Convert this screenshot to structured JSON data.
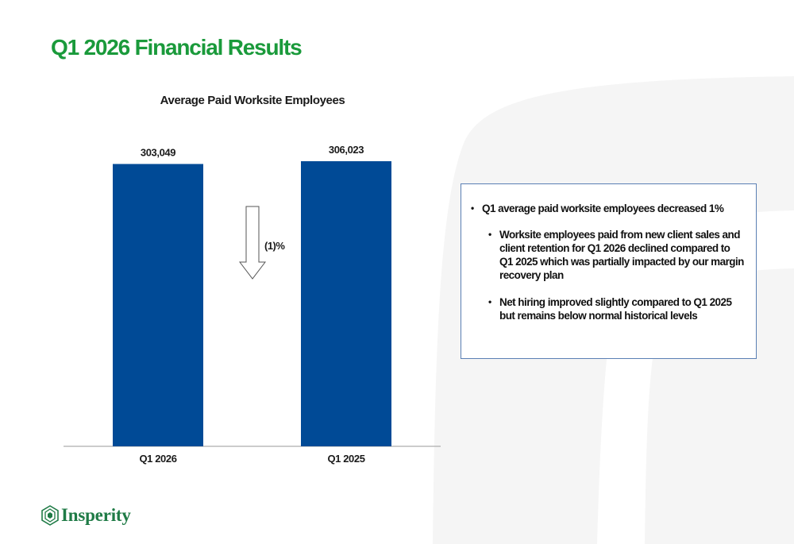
{
  "slide": {
    "title": "Q1 2026 Financial Results"
  },
  "chart_data": {
    "type": "bar",
    "title": "Average Paid Worksite Employees",
    "categories": [
      "Q1 2026",
      "Q1 2025"
    ],
    "values": [
      303049,
      306023
    ],
    "value_labels": [
      "303,049",
      "306,023"
    ],
    "bar_color": "#004a96",
    "change_annotation": "(1)%",
    "change_direction": "down",
    "ylim": [
      0,
      306023
    ],
    "grid": false,
    "legend": "none"
  },
  "bullets": {
    "main": "Q1 average paid worksite employees decreased 1%",
    "sub": [
      "Worksite employees paid from new client sales and client retention for Q1 2026  declined compared to Q1 2025 which was partially impacted by our margin recovery plan",
      "Net hiring improved slightly compared to  Q1 2025 but remains below normal historical levels"
    ]
  },
  "logo": {
    "text": "Insperity",
    "mark": "insperity-logo-icon"
  },
  "colors": {
    "title_green": "#1a9a3b",
    "bar_blue": "#004a96",
    "logo_green": "#1f7b46",
    "box_border": "#5a7fb4"
  }
}
